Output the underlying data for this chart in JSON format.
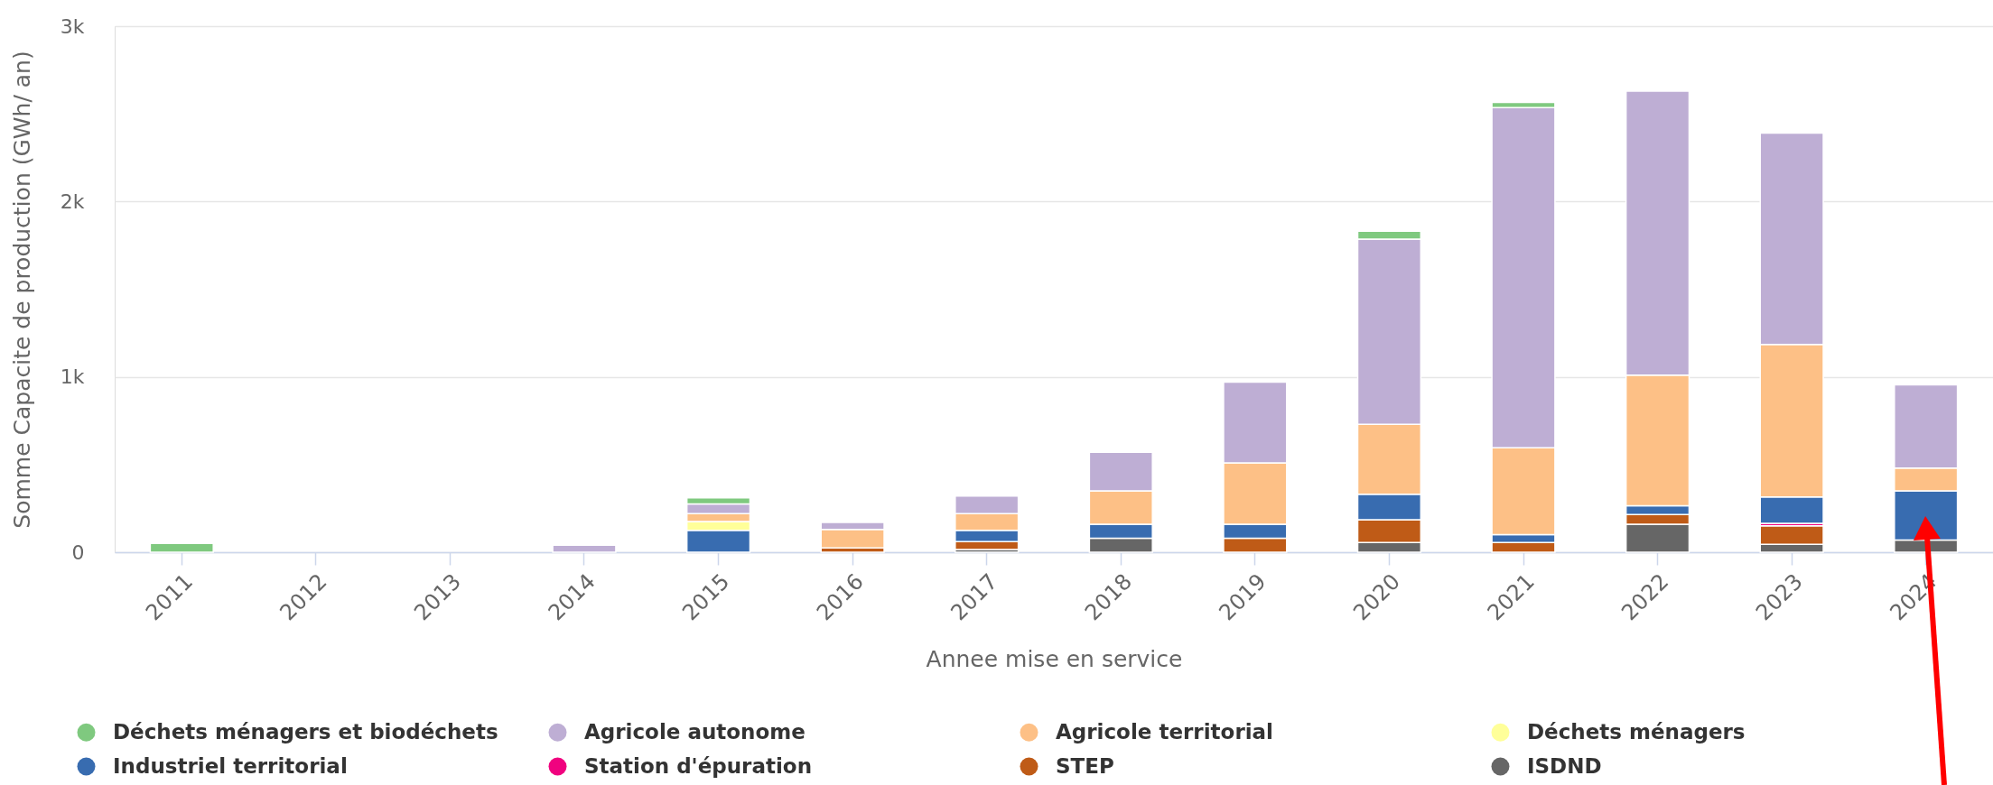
{
  "chart_data": {
    "type": "bar",
    "stacked": true,
    "xlabel": "Annee mise en service",
    "ylabel": "Somme Capacite de production (GWh/ an)",
    "categories": [
      "2011",
      "2012",
      "2013",
      "2014",
      "2015",
      "2016",
      "2017",
      "2018",
      "2019",
      "2020",
      "2021",
      "2022",
      "2023",
      "2024"
    ],
    "series": [
      {
        "name": "ISDND",
        "color": "#666666",
        "values": [
          null,
          null,
          null,
          null,
          null,
          null,
          15,
          80,
          null,
          55,
          null,
          160,
          45,
          70
        ]
      },
      {
        "name": "STEP",
        "color": "#bf5b17",
        "values": [
          null,
          null,
          null,
          null,
          null,
          25,
          45,
          null,
          80,
          130,
          55,
          55,
          105,
          null
        ]
      },
      {
        "name": "Station d'épuration",
        "color": "#f0027f",
        "values": [
          null,
          null,
          null,
          null,
          null,
          null,
          null,
          null,
          null,
          null,
          null,
          null,
          15,
          null
        ]
      },
      {
        "name": "Industriel territorial",
        "color": "#386cb0",
        "values": [
          null,
          null,
          null,
          null,
          125,
          null,
          65,
          80,
          80,
          145,
          45,
          50,
          150,
          280
        ]
      },
      {
        "name": "Déchets ménagers",
        "color": "#ffff99",
        "values": [
          null,
          null,
          null,
          null,
          50,
          null,
          null,
          null,
          null,
          null,
          null,
          null,
          null,
          null
        ]
      },
      {
        "name": "Agricole territorial",
        "color": "#fdc086",
        "values": [
          null,
          null,
          null,
          null,
          45,
          105,
          95,
          190,
          350,
          400,
          495,
          745,
          870,
          130
        ]
      },
      {
        "name": "Agricole autonome",
        "color": "#beaed4",
        "values": [
          null,
          null,
          null,
          40,
          55,
          40,
          100,
          220,
          460,
          1055,
          1940,
          1620,
          1205,
          475
        ]
      },
      {
        "name": "Déchets ménagers et biodéchets",
        "color": "#7fc97f",
        "values": [
          50,
          null,
          null,
          null,
          35,
          null,
          null,
          null,
          null,
          45,
          30,
          null,
          null,
          null
        ]
      }
    ],
    "ylim": [
      0,
      3000
    ],
    "yticks": [
      0,
      {
        "value": 1000,
        "label": "1k"
      },
      {
        "value": 2000,
        "label": "2k"
      },
      {
        "value": 3000,
        "label": "3k"
      }
    ],
    "grid": "y",
    "legend": "bottom"
  }
}
